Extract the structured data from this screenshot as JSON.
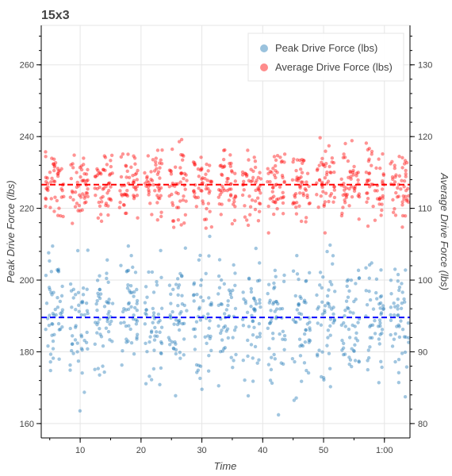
{
  "chart_data": {
    "type": "scatter",
    "title": "15x3",
    "xlabel": "Time",
    "ylabel": "Peak Drive Force (lbs)",
    "y2label": "Average Drive Force (lbs)",
    "xlim": [
      3.6,
      64.2
    ],
    "ylim": [
      156,
      271
    ],
    "y2lim": [
      78,
      135.5
    ],
    "x_ticks": [
      10,
      20,
      30,
      40,
      50,
      60
    ],
    "x_tick_labels": [
      "10",
      "20",
      "30",
      "40",
      "50",
      "1:00"
    ],
    "y_ticks": [
      160,
      180,
      200,
      220,
      240,
      260
    ],
    "y_tick_labels": [
      "160",
      "180",
      "200",
      "220",
      "240",
      "260"
    ],
    "y2_ticks": [
      80,
      90,
      100,
      110,
      120,
      130
    ],
    "y2_tick_labels": [
      "80",
      "90",
      "100",
      "110",
      "120",
      "130"
    ],
    "grid": true,
    "legend_position": "top-right",
    "clusters_start": 4.3,
    "clusters_step": 4.05,
    "clusters_count": 15,
    "points_per_cluster": 48,
    "series": [
      {
        "name": "Peak Drive Force (lbs)",
        "axis": "left",
        "color": "#1f77b4",
        "mean": 189.6,
        "range": [
          159,
          222
        ],
        "mean_line_color": "#0000ff"
      },
      {
        "name": "Average Drive Force (lbs)",
        "axis": "right",
        "color": "#ff0000",
        "mean": 113.3,
        "range": [
          104,
          125
        ],
        "mean_line_color": "#ff0000"
      }
    ]
  }
}
